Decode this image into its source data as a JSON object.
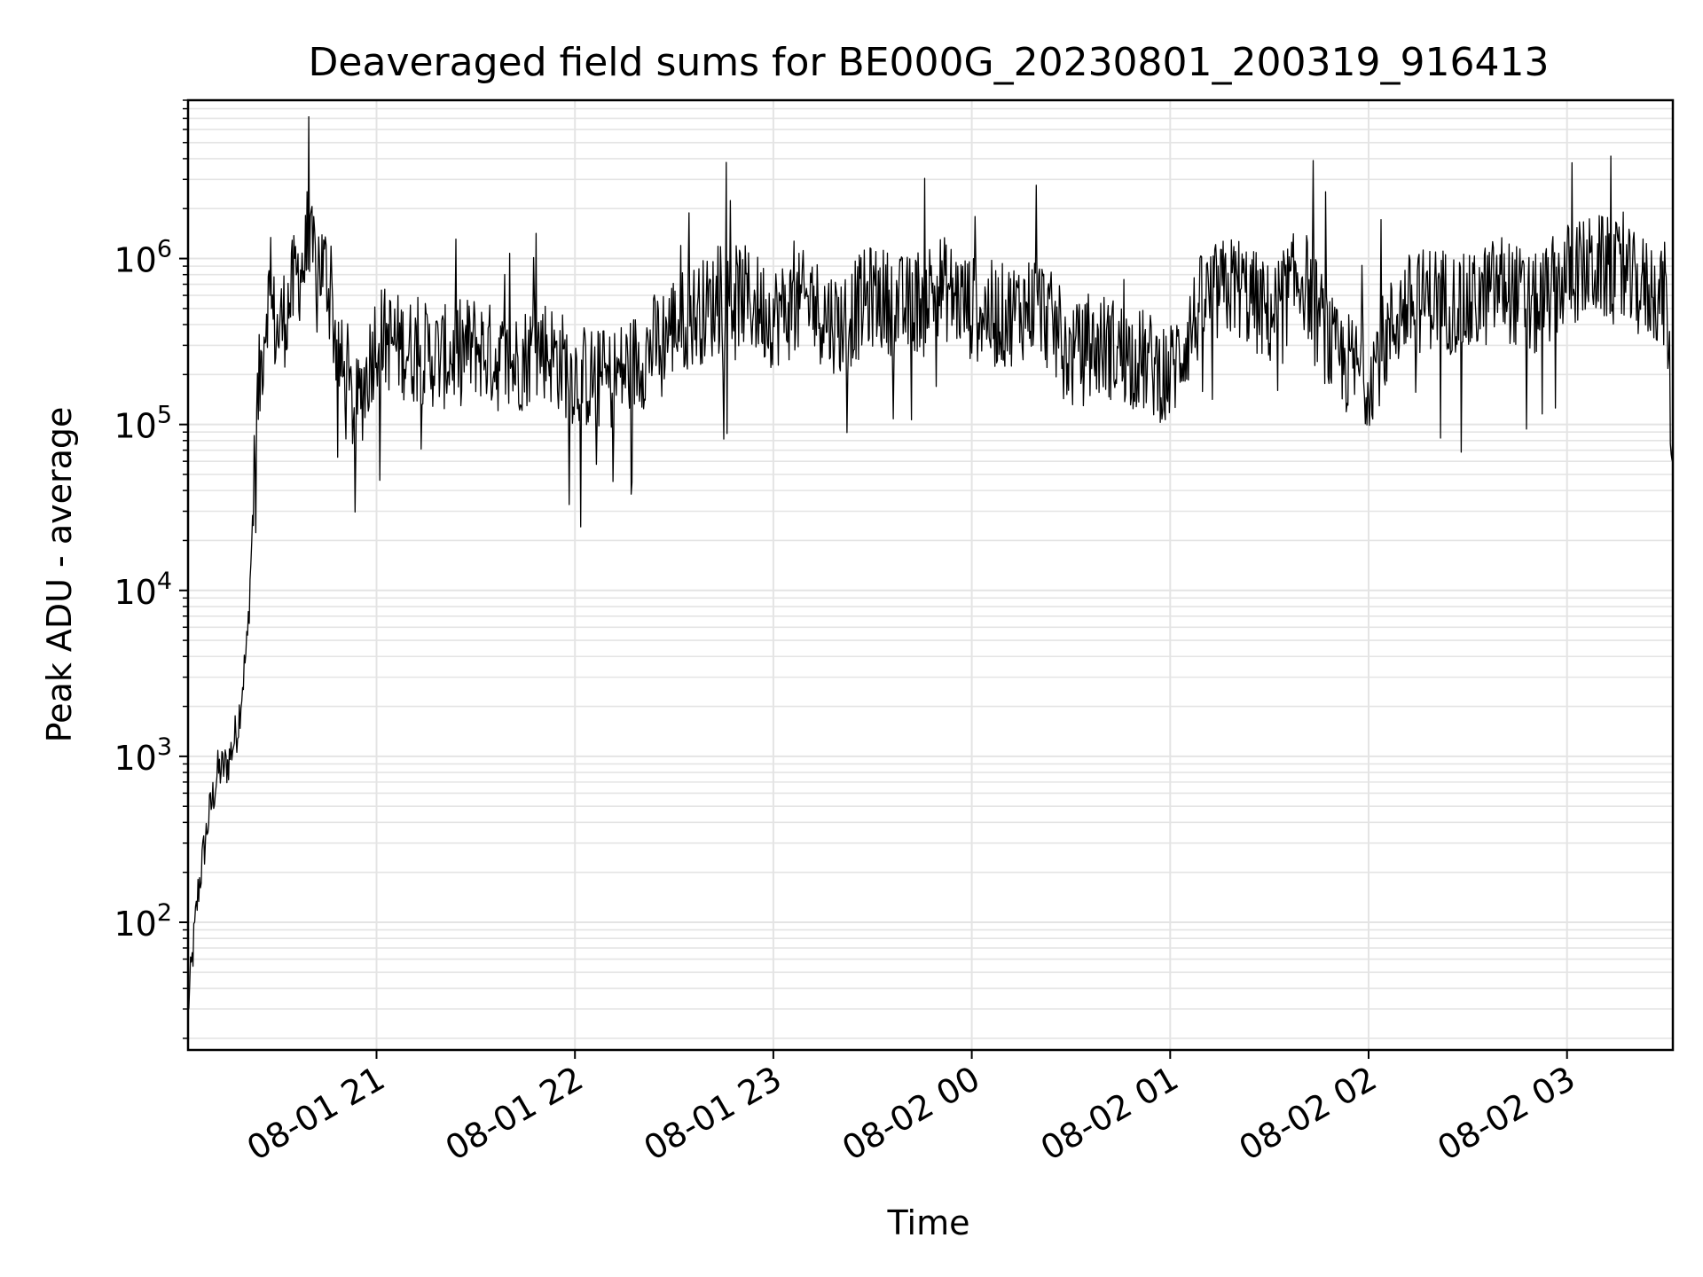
{
  "chart_data": {
    "type": "line",
    "title": "Deaveraged field sums for BE000G_20230801_200319_916413",
    "xlabel": "Time",
    "ylabel": "Peak ADU - average",
    "yscale": "log",
    "ylim": [
      17,
      9000000
    ],
    "xlim": [
      "2023-08-01 20:03",
      "2023-08-02 03:32"
    ],
    "x_ticks": [
      "08-01 21",
      "08-01 22",
      "08-01 23",
      "08-02 00",
      "08-02 01",
      "08-02 02",
      "08-02 03"
    ],
    "y_ticks": [
      {
        "base": "10",
        "exp": "2",
        "value": 100
      },
      {
        "base": "10",
        "exp": "3",
        "value": 1000
      },
      {
        "base": "10",
        "exp": "4",
        "value": 10000
      },
      {
        "base": "10",
        "exp": "5",
        "value": 100000
      },
      {
        "base": "10",
        "exp": "6",
        "value": 1000000
      }
    ],
    "grid": true,
    "line_color": "#000000",
    "grid_color": "#e4e4e4",
    "series": [
      {
        "x": [
          "20:03",
          "20:06",
          "20:09",
          "20:12",
          "20:15",
          "20:18",
          "20:21",
          "20:24",
          "20:27",
          "20:30",
          "20:33",
          "20:36",
          "20:39",
          "20:42",
          "20:45",
          "20:48",
          "20:51",
          "20:54",
          "20:57",
          "21:00",
          "21:10",
          "21:20",
          "21:30",
          "21:40",
          "21:50",
          "22:00",
          "22:10",
          "22:20",
          "22:30",
          "22:40",
          "22:50",
          "23:00",
          "23:10",
          "23:20",
          "23:30",
          "23:40",
          "23:50",
          "00:00",
          "00:10",
          "00:20",
          "00:30",
          "00:40",
          "00:50",
          "01:00",
          "01:10",
          "01:20",
          "01:30",
          "01:40",
          "01:50",
          "02:00",
          "02:10",
          "02:20",
          "02:30",
          "02:40",
          "02:50",
          "03:00",
          "03:10",
          "03:20",
          "03:30",
          "03:32"
        ],
        "y": [
          30,
          150,
          400,
          800,
          900,
          1500,
          5000,
          130000,
          600000,
          350000,
          500000,
          800000,
          1000000,
          1000000,
          800000,
          300000,
          150000,
          120000,
          200000,
          350000,
          280000,
          250000,
          300000,
          220000,
          300000,
          200000,
          180000,
          250000,
          400000,
          500000,
          600000,
          450000,
          550000,
          400000,
          600000,
          500000,
          700000,
          500000,
          450000,
          550000,
          250000,
          300000,
          250000,
          200000,
          550000,
          700000,
          450000,
          800000,
          250000,
          200000,
          500000,
          600000,
          500000,
          700000,
          500000,
          800000,
          900000,
          700000,
          600000,
          60000
        ]
      }
    ]
  }
}
